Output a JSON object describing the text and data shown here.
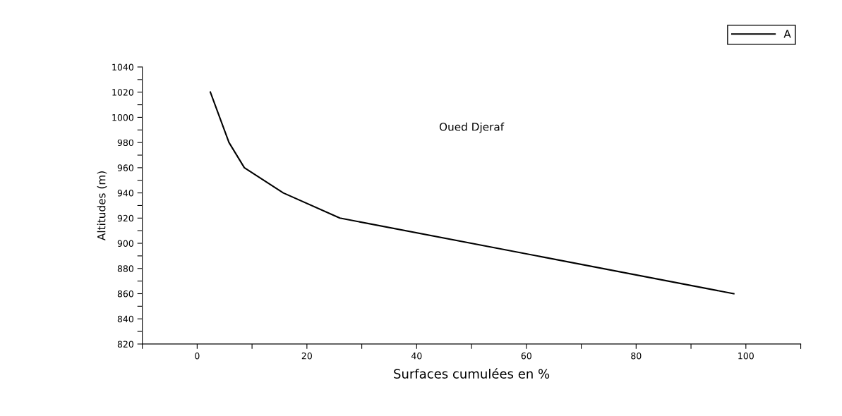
{
  "chart_data": {
    "type": "line",
    "xlabel": "Surfaces cumulées en %",
    "ylabel": "Altitudes (m)",
    "annotations": [
      "Oued Djeraf"
    ],
    "x": [
      2.4,
      5.8,
      8.6,
      15.7,
      26,
      97.8
    ],
    "series": [
      {
        "name": "A",
        "color": "#000000",
        "values": [
          1020,
          980,
          960,
          940,
          920,
          860
        ]
      }
    ],
    "xlim": [
      -10,
      110
    ],
    "xticks": [
      {
        "value": -10,
        "label": null
      },
      0,
      {
        "value": 10,
        "label": null
      },
      20,
      {
        "value": 30,
        "label": null
      },
      40,
      {
        "value": 50,
        "label": null
      },
      60,
      {
        "value": 70,
        "label": null
      },
      80,
      {
        "value": 90,
        "label": null
      },
      100,
      {
        "value": 110,
        "label": null
      }
    ],
    "ylim": [
      820,
      1040
    ],
    "yticks": [
      820,
      {
        "value": 830,
        "label": null
      },
      840,
      {
        "value": 850,
        "label": null
      },
      860,
      {
        "value": 870,
        "label": null
      },
      880,
      {
        "value": 890,
        "label": null
      },
      900,
      {
        "value": 910,
        "label": null
      },
      920,
      {
        "value": 930,
        "label": null
      },
      940,
      {
        "value": 950,
        "label": null
      },
      960,
      {
        "value": 970,
        "label": null
      },
      980,
      {
        "value": 990,
        "label": null
      },
      1000,
      {
        "value": 1010,
        "label": null
      },
      1020,
      {
        "value": 1030,
        "label": null
      },
      1040
    ],
    "grid": false,
    "legend": "top right",
    "marker": "none",
    "line_style": "solid"
  }
}
